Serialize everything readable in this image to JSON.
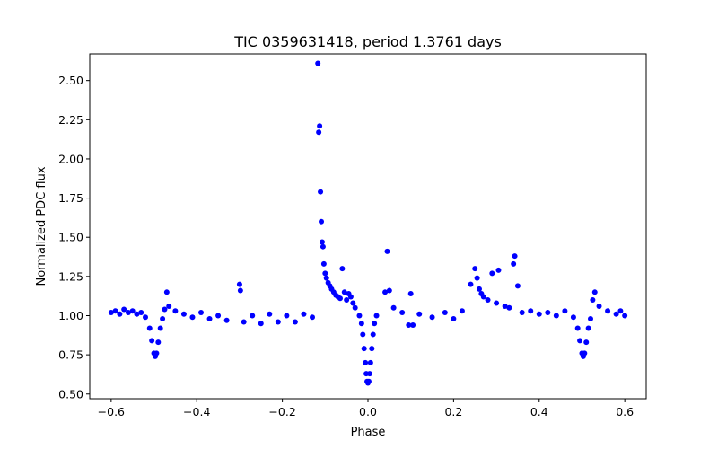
{
  "chart_data": {
    "type": "scatter",
    "title": "TIC 0359631418, period 1.3761 days",
    "xlabel": "Phase",
    "ylabel": "Normalized PDC flux",
    "xlim": [
      -0.65,
      0.65
    ],
    "ylim": [
      0.47,
      2.67
    ],
    "x_ticks": [
      -0.6,
      -0.4,
      -0.2,
      0.0,
      0.2,
      0.4,
      0.6
    ],
    "x_tick_labels": [
      "−0.6",
      "−0.4",
      "−0.2",
      "0.0",
      "0.2",
      "0.4",
      "0.6"
    ],
    "y_ticks": [
      0.5,
      0.75,
      1.0,
      1.25,
      1.5,
      1.75,
      2.0,
      2.25,
      2.5
    ],
    "y_tick_labels": [
      "0.50",
      "0.75",
      "1.00",
      "1.25",
      "1.50",
      "1.75",
      "2.00",
      "2.25",
      "2.50"
    ],
    "grid": false,
    "marker_color": "#0000ff",
    "series": [
      {
        "points": [
          [
            -0.6,
            1.02
          ],
          [
            -0.59,
            1.03
          ],
          [
            -0.58,
            1.01
          ],
          [
            -0.57,
            1.04
          ],
          [
            -0.56,
            1.02
          ],
          [
            -0.55,
            1.03
          ],
          [
            -0.54,
            1.01
          ],
          [
            -0.53,
            1.02
          ],
          [
            -0.52,
            0.99
          ],
          [
            -0.51,
            0.92
          ],
          [
            -0.505,
            0.84
          ],
          [
            -0.5,
            0.76
          ],
          [
            -0.497,
            0.74
          ],
          [
            -0.494,
            0.76
          ],
          [
            -0.49,
            0.83
          ],
          [
            -0.485,
            0.92
          ],
          [
            -0.48,
            0.98
          ],
          [
            -0.475,
            1.04
          ],
          [
            -0.47,
            1.15
          ],
          [
            -0.465,
            1.06
          ],
          [
            -0.45,
            1.03
          ],
          [
            -0.43,
            1.01
          ],
          [
            -0.41,
            0.99
          ],
          [
            -0.39,
            1.02
          ],
          [
            -0.37,
            0.98
          ],
          [
            -0.35,
            1.0
          ],
          [
            -0.33,
            0.97
          ],
          [
            -0.3,
            1.2
          ],
          [
            -0.298,
            1.16
          ],
          [
            -0.29,
            0.96
          ],
          [
            -0.27,
            1.0
          ],
          [
            -0.25,
            0.95
          ],
          [
            -0.23,
            1.01
          ],
          [
            -0.21,
            0.96
          ],
          [
            -0.19,
            1.0
          ],
          [
            -0.17,
            0.96
          ],
          [
            -0.15,
            1.01
          ],
          [
            -0.13,
            0.99
          ],
          [
            -0.117,
            2.61
          ],
          [
            -0.115,
            2.17
          ],
          [
            -0.113,
            2.21
          ],
          [
            -0.111,
            1.79
          ],
          [
            -0.109,
            1.6
          ],
          [
            -0.107,
            1.47
          ],
          [
            -0.105,
            1.44
          ],
          [
            -0.103,
            1.33
          ],
          [
            -0.1,
            1.27
          ],
          [
            -0.097,
            1.24
          ],
          [
            -0.093,
            1.21
          ],
          [
            -0.089,
            1.19
          ],
          [
            -0.085,
            1.17
          ],
          [
            -0.08,
            1.15
          ],
          [
            -0.075,
            1.13
          ],
          [
            -0.07,
            1.12
          ],
          [
            -0.065,
            1.11
          ],
          [
            -0.06,
            1.3
          ],
          [
            -0.055,
            1.15
          ],
          [
            -0.05,
            1.1
          ],
          [
            -0.045,
            1.14
          ],
          [
            -0.04,
            1.12
          ],
          [
            -0.035,
            1.08
          ],
          [
            -0.03,
            1.05
          ],
          [
            -0.02,
            1.0
          ],
          [
            -0.015,
            0.95
          ],
          [
            -0.012,
            0.88
          ],
          [
            -0.009,
            0.79
          ],
          [
            -0.006,
            0.7
          ],
          [
            -0.004,
            0.63
          ],
          [
            -0.002,
            0.58
          ],
          [
            0.0,
            0.57
          ],
          [
            0.002,
            0.58
          ],
          [
            0.004,
            0.63
          ],
          [
            0.006,
            0.7
          ],
          [
            0.009,
            0.79
          ],
          [
            0.012,
            0.88
          ],
          [
            0.015,
            0.95
          ],
          [
            0.02,
            1.0
          ],
          [
            0.04,
            1.15
          ],
          [
            0.045,
            1.41
          ],
          [
            0.05,
            1.16
          ],
          [
            0.06,
            1.05
          ],
          [
            0.08,
            1.02
          ],
          [
            0.095,
            0.94
          ],
          [
            0.1,
            1.14
          ],
          [
            0.105,
            0.94
          ],
          [
            0.12,
            1.01
          ],
          [
            0.15,
            0.99
          ],
          [
            0.18,
            1.02
          ],
          [
            0.2,
            0.98
          ],
          [
            0.22,
            1.03
          ],
          [
            0.24,
            1.2
          ],
          [
            0.25,
            1.3
          ],
          [
            0.255,
            1.24
          ],
          [
            0.26,
            1.17
          ],
          [
            0.265,
            1.14
          ],
          [
            0.27,
            1.12
          ],
          [
            0.28,
            1.1
          ],
          [
            0.29,
            1.27
          ],
          [
            0.3,
            1.08
          ],
          [
            0.305,
            1.29
          ],
          [
            0.32,
            1.06
          ],
          [
            0.33,
            1.05
          ],
          [
            0.34,
            1.33
          ],
          [
            0.343,
            1.38
          ],
          [
            0.35,
            1.19
          ],
          [
            0.36,
            1.02
          ],
          [
            0.38,
            1.03
          ],
          [
            0.4,
            1.01
          ],
          [
            0.42,
            1.02
          ],
          [
            0.44,
            1.0
          ],
          [
            0.46,
            1.03
          ],
          [
            0.48,
            0.99
          ],
          [
            0.49,
            0.92
          ],
          [
            0.495,
            0.84
          ],
          [
            0.5,
            0.76
          ],
          [
            0.503,
            0.74
          ],
          [
            0.506,
            0.76
          ],
          [
            0.51,
            0.83
          ],
          [
            0.515,
            0.92
          ],
          [
            0.52,
            0.98
          ],
          [
            0.525,
            1.1
          ],
          [
            0.53,
            1.15
          ],
          [
            0.54,
            1.06
          ],
          [
            0.56,
            1.03
          ],
          [
            0.58,
            1.01
          ],
          [
            0.59,
            1.03
          ],
          [
            0.6,
            1.0
          ]
        ]
      }
    ]
  }
}
